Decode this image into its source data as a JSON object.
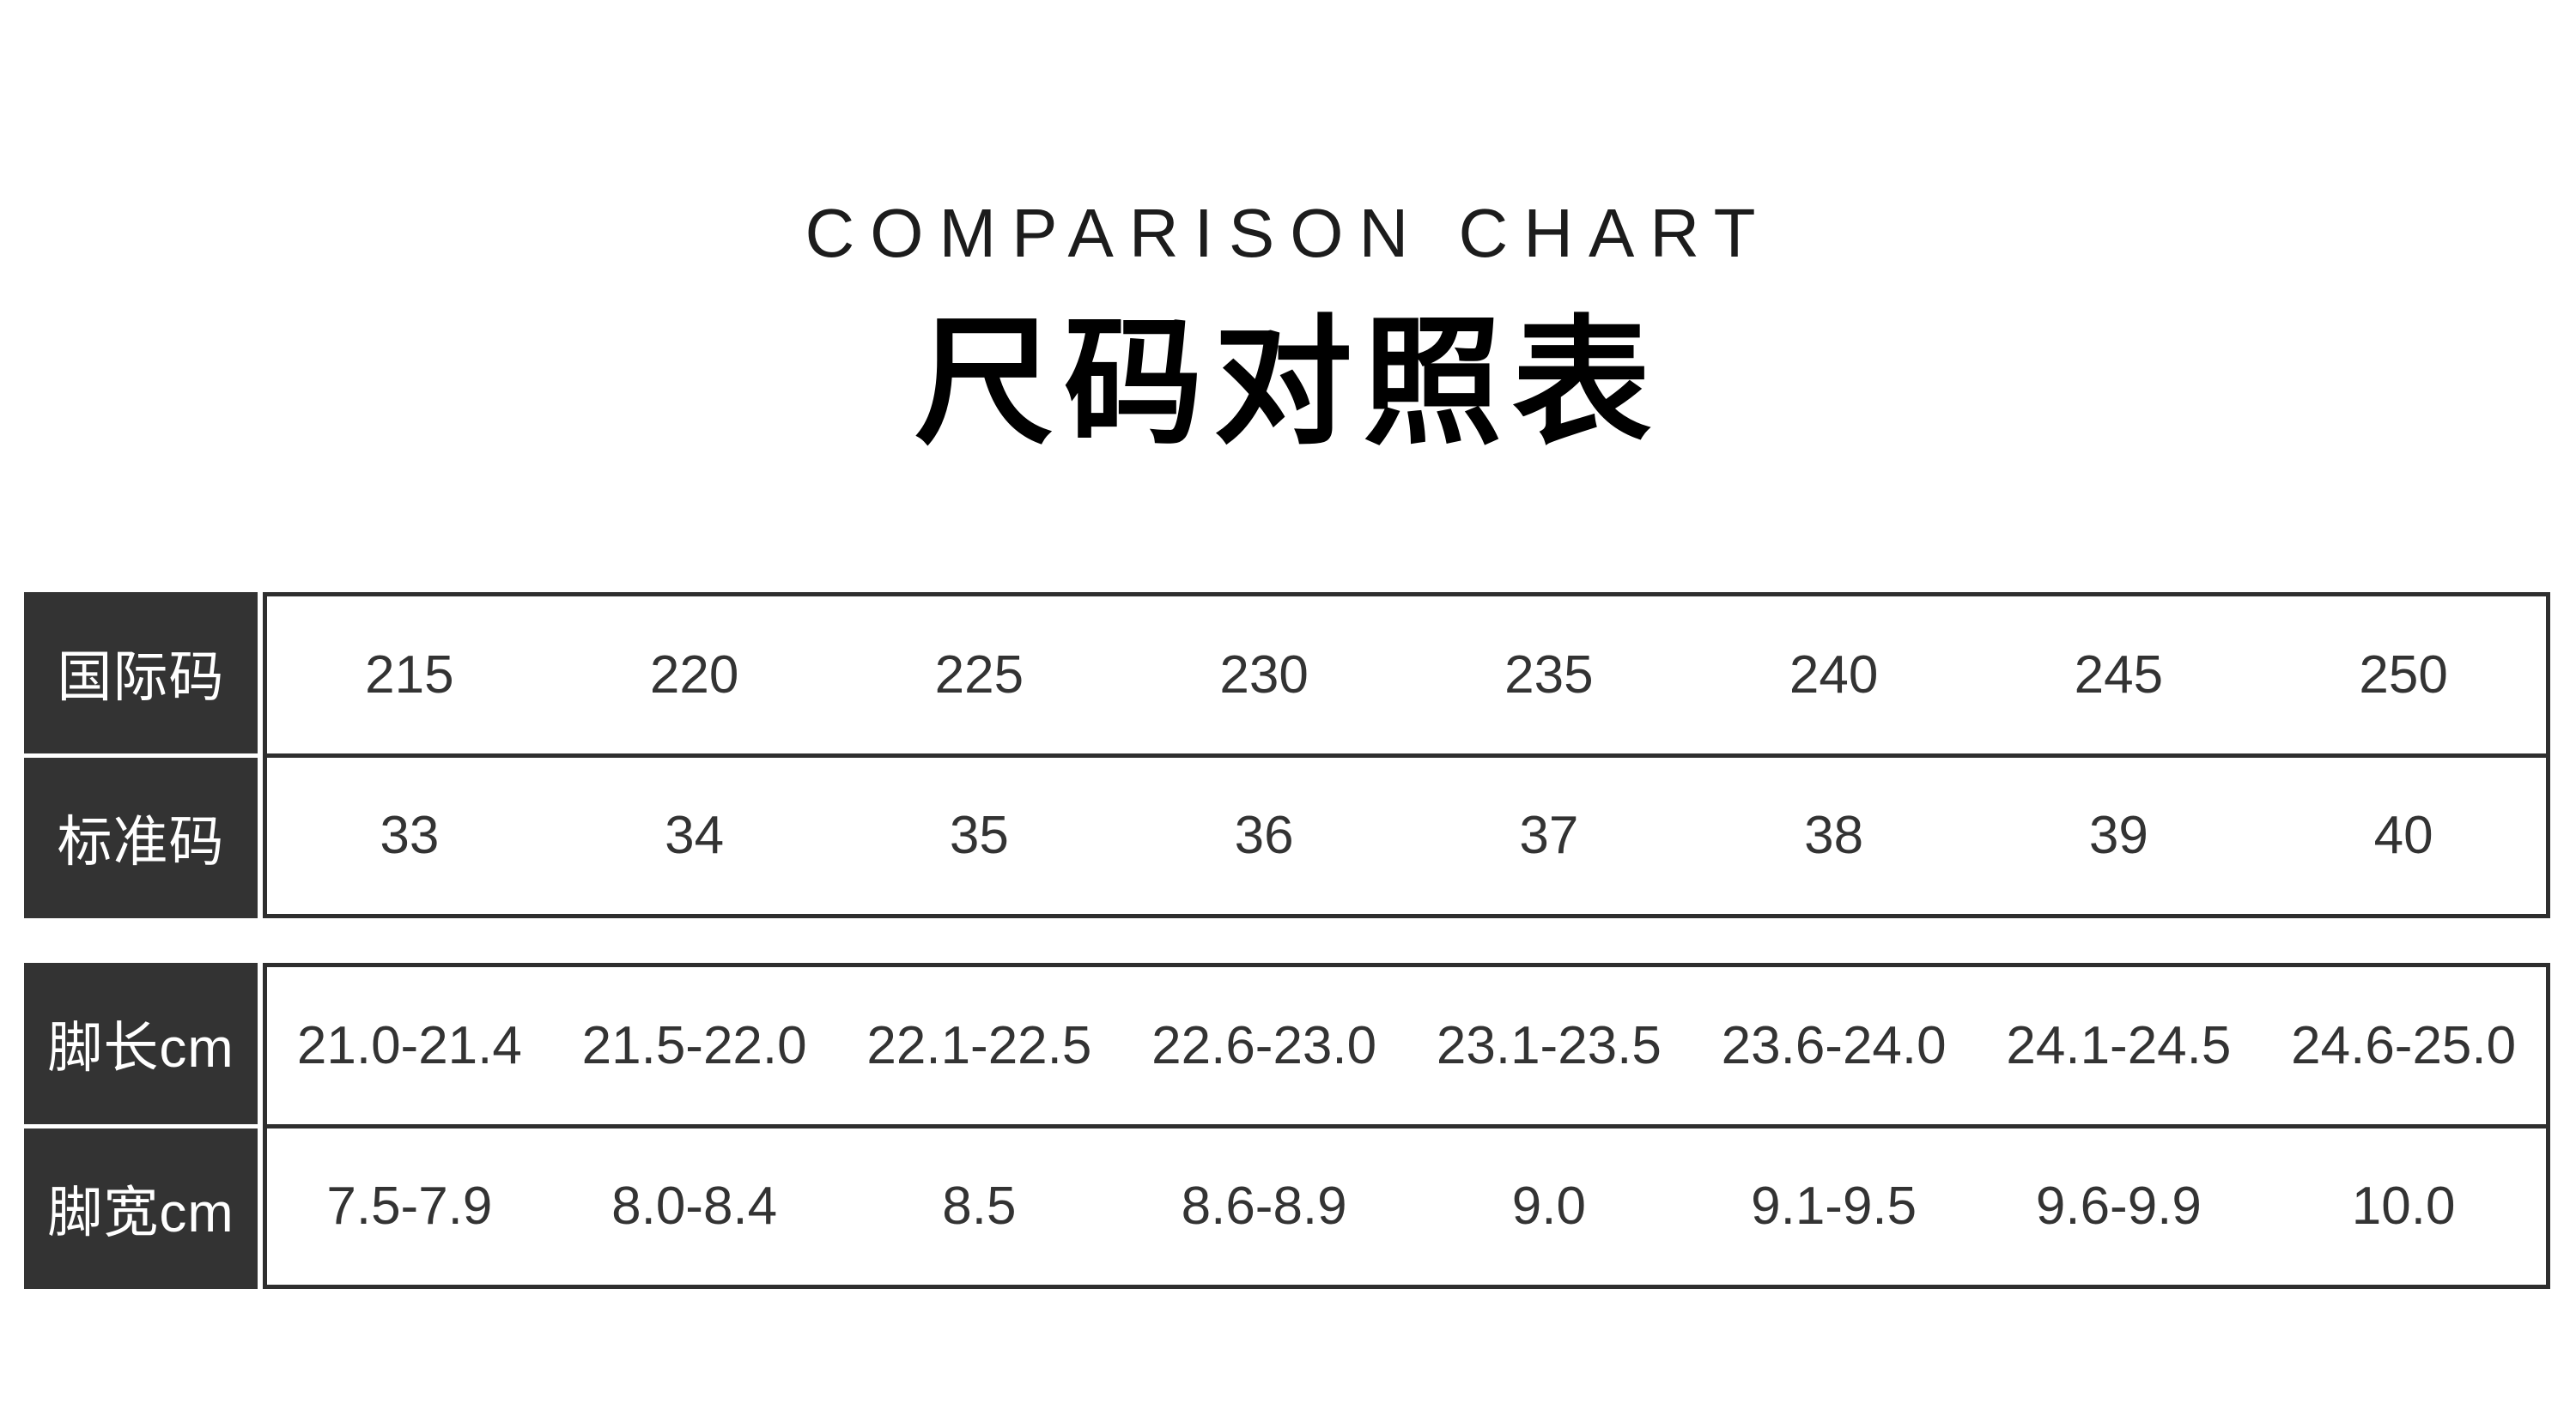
{
  "chart_data": {
    "type": "table",
    "title": "COMPARISON CHART",
    "subtitle": "尺码对照表",
    "tables": [
      {
        "rows": [
          {
            "label": "国际码",
            "values": [
              "215",
              "220",
              "225",
              "230",
              "235",
              "240",
              "245",
              "250"
            ]
          },
          {
            "label": "标准码",
            "values": [
              "33",
              "34",
              "35",
              "36",
              "37",
              "38",
              "39",
              "40"
            ]
          }
        ]
      },
      {
        "rows": [
          {
            "label": "脚长cm",
            "values": [
              "21.0-21.4",
              "21.5-22.0",
              "22.1-22.5",
              "22.6-23.0",
              "23.1-23.5",
              "23.6-24.0",
              "24.1-24.5",
              "24.6-25.0"
            ]
          },
          {
            "label": "脚宽cm",
            "values": [
              "7.5-7.9",
              "8.0-8.4",
              "8.5",
              "8.6-8.9",
              "9.0",
              "9.1-9.5",
              "9.6-9.9",
              "10.0"
            ]
          }
        ]
      }
    ]
  },
  "colors": {
    "background": "#ffffff",
    "label_cell_bg": "#333333",
    "label_cell_text": "#ffffff",
    "border": "#2e2e2e",
    "value_text": "#333333",
    "title_text": "#1c1c1c"
  }
}
